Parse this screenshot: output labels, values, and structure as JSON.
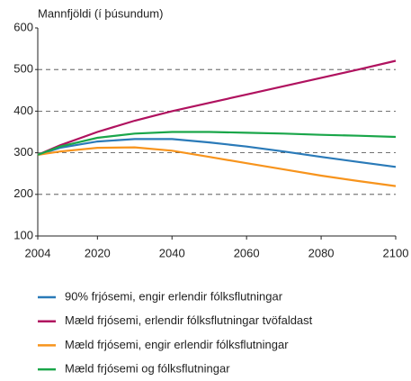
{
  "chart_data": {
    "type": "line",
    "title": "Mannfjöldi (í þúsundum)",
    "x": [
      2004,
      2010,
      2020,
      2030,
      2040,
      2050,
      2060,
      2070,
      2080,
      2090,
      2100
    ],
    "xlim": [
      2004,
      2100
    ],
    "xticks": [
      2004,
      2020,
      2040,
      2060,
      2080,
      2100
    ],
    "ylim": [
      100,
      600
    ],
    "yticks": [
      100,
      200,
      300,
      400,
      500,
      600
    ],
    "grid": true,
    "series": [
      {
        "name": "90% frjósemi, engir erlendir fólksflutningar",
        "color": "#2a7ab8",
        "values": [
          295,
          312,
          327,
          333,
          333,
          325,
          315,
          303,
          290,
          278,
          266
        ]
      },
      {
        "name": "Mæld frjósemi, erlendir fólksflutningar tvöfaldast",
        "color": "#b0125f",
        "values": [
          295,
          318,
          350,
          377,
          400,
          420,
          440,
          460,
          480,
          500,
          521
        ]
      },
      {
        "name": "Mæld frjósemi, engir erlendir fólksflutningar",
        "color": "#f7941d",
        "values": [
          295,
          303,
          312,
          313,
          305,
          290,
          275,
          260,
          245,
          232,
          220
        ]
      },
      {
        "name": "Mæld frjósemi og fólksflutningar",
        "color": "#1aa64a",
        "values": [
          295,
          315,
          336,
          346,
          350,
          350,
          348,
          346,
          343,
          341,
          338
        ]
      }
    ]
  }
}
